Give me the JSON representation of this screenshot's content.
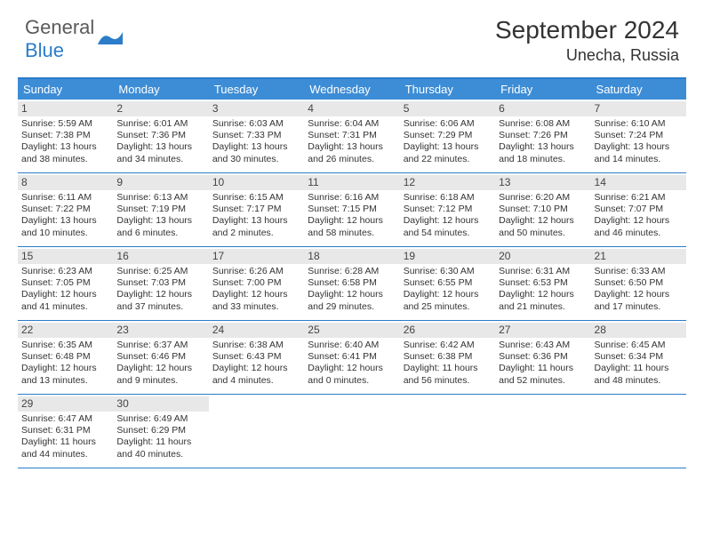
{
  "logo": {
    "text1": "General",
    "text2": "Blue"
  },
  "title": "September 2024",
  "location": "Unecha, Russia",
  "days_of_week": [
    "Sunday",
    "Monday",
    "Tuesday",
    "Wednesday",
    "Thursday",
    "Friday",
    "Saturday"
  ],
  "colors": {
    "header_bg": "#3d8dd6",
    "border": "#2b7cc9",
    "daynum_bg": "#e8e8e8",
    "text": "#333333",
    "logo_gray": "#5a5a5a",
    "logo_blue": "#2b7cc9"
  },
  "layout": {
    "weeks": 5,
    "cols": 7,
    "first_day_offset": 0,
    "total_days": 30
  },
  "days": [
    {
      "n": "1",
      "sr": "Sunrise: 5:59 AM",
      "ss": "Sunset: 7:38 PM",
      "dl1": "Daylight: 13 hours",
      "dl2": "and 38 minutes."
    },
    {
      "n": "2",
      "sr": "Sunrise: 6:01 AM",
      "ss": "Sunset: 7:36 PM",
      "dl1": "Daylight: 13 hours",
      "dl2": "and 34 minutes."
    },
    {
      "n": "3",
      "sr": "Sunrise: 6:03 AM",
      "ss": "Sunset: 7:33 PM",
      "dl1": "Daylight: 13 hours",
      "dl2": "and 30 minutes."
    },
    {
      "n": "4",
      "sr": "Sunrise: 6:04 AM",
      "ss": "Sunset: 7:31 PM",
      "dl1": "Daylight: 13 hours",
      "dl2": "and 26 minutes."
    },
    {
      "n": "5",
      "sr": "Sunrise: 6:06 AM",
      "ss": "Sunset: 7:29 PM",
      "dl1": "Daylight: 13 hours",
      "dl2": "and 22 minutes."
    },
    {
      "n": "6",
      "sr": "Sunrise: 6:08 AM",
      "ss": "Sunset: 7:26 PM",
      "dl1": "Daylight: 13 hours",
      "dl2": "and 18 minutes."
    },
    {
      "n": "7",
      "sr": "Sunrise: 6:10 AM",
      "ss": "Sunset: 7:24 PM",
      "dl1": "Daylight: 13 hours",
      "dl2": "and 14 minutes."
    },
    {
      "n": "8",
      "sr": "Sunrise: 6:11 AM",
      "ss": "Sunset: 7:22 PM",
      "dl1": "Daylight: 13 hours",
      "dl2": "and 10 minutes."
    },
    {
      "n": "9",
      "sr": "Sunrise: 6:13 AM",
      "ss": "Sunset: 7:19 PM",
      "dl1": "Daylight: 13 hours",
      "dl2": "and 6 minutes."
    },
    {
      "n": "10",
      "sr": "Sunrise: 6:15 AM",
      "ss": "Sunset: 7:17 PM",
      "dl1": "Daylight: 13 hours",
      "dl2": "and 2 minutes."
    },
    {
      "n": "11",
      "sr": "Sunrise: 6:16 AM",
      "ss": "Sunset: 7:15 PM",
      "dl1": "Daylight: 12 hours",
      "dl2": "and 58 minutes."
    },
    {
      "n": "12",
      "sr": "Sunrise: 6:18 AM",
      "ss": "Sunset: 7:12 PM",
      "dl1": "Daylight: 12 hours",
      "dl2": "and 54 minutes."
    },
    {
      "n": "13",
      "sr": "Sunrise: 6:20 AM",
      "ss": "Sunset: 7:10 PM",
      "dl1": "Daylight: 12 hours",
      "dl2": "and 50 minutes."
    },
    {
      "n": "14",
      "sr": "Sunrise: 6:21 AM",
      "ss": "Sunset: 7:07 PM",
      "dl1": "Daylight: 12 hours",
      "dl2": "and 46 minutes."
    },
    {
      "n": "15",
      "sr": "Sunrise: 6:23 AM",
      "ss": "Sunset: 7:05 PM",
      "dl1": "Daylight: 12 hours",
      "dl2": "and 41 minutes."
    },
    {
      "n": "16",
      "sr": "Sunrise: 6:25 AM",
      "ss": "Sunset: 7:03 PM",
      "dl1": "Daylight: 12 hours",
      "dl2": "and 37 minutes."
    },
    {
      "n": "17",
      "sr": "Sunrise: 6:26 AM",
      "ss": "Sunset: 7:00 PM",
      "dl1": "Daylight: 12 hours",
      "dl2": "and 33 minutes."
    },
    {
      "n": "18",
      "sr": "Sunrise: 6:28 AM",
      "ss": "Sunset: 6:58 PM",
      "dl1": "Daylight: 12 hours",
      "dl2": "and 29 minutes."
    },
    {
      "n": "19",
      "sr": "Sunrise: 6:30 AM",
      "ss": "Sunset: 6:55 PM",
      "dl1": "Daylight: 12 hours",
      "dl2": "and 25 minutes."
    },
    {
      "n": "20",
      "sr": "Sunrise: 6:31 AM",
      "ss": "Sunset: 6:53 PM",
      "dl1": "Daylight: 12 hours",
      "dl2": "and 21 minutes."
    },
    {
      "n": "21",
      "sr": "Sunrise: 6:33 AM",
      "ss": "Sunset: 6:50 PM",
      "dl1": "Daylight: 12 hours",
      "dl2": "and 17 minutes."
    },
    {
      "n": "22",
      "sr": "Sunrise: 6:35 AM",
      "ss": "Sunset: 6:48 PM",
      "dl1": "Daylight: 12 hours",
      "dl2": "and 13 minutes."
    },
    {
      "n": "23",
      "sr": "Sunrise: 6:37 AM",
      "ss": "Sunset: 6:46 PM",
      "dl1": "Daylight: 12 hours",
      "dl2": "and 9 minutes."
    },
    {
      "n": "24",
      "sr": "Sunrise: 6:38 AM",
      "ss": "Sunset: 6:43 PM",
      "dl1": "Daylight: 12 hours",
      "dl2": "and 4 minutes."
    },
    {
      "n": "25",
      "sr": "Sunrise: 6:40 AM",
      "ss": "Sunset: 6:41 PM",
      "dl1": "Daylight: 12 hours",
      "dl2": "and 0 minutes."
    },
    {
      "n": "26",
      "sr": "Sunrise: 6:42 AM",
      "ss": "Sunset: 6:38 PM",
      "dl1": "Daylight: 11 hours",
      "dl2": "and 56 minutes."
    },
    {
      "n": "27",
      "sr": "Sunrise: 6:43 AM",
      "ss": "Sunset: 6:36 PM",
      "dl1": "Daylight: 11 hours",
      "dl2": "and 52 minutes."
    },
    {
      "n": "28",
      "sr": "Sunrise: 6:45 AM",
      "ss": "Sunset: 6:34 PM",
      "dl1": "Daylight: 11 hours",
      "dl2": "and 48 minutes."
    },
    {
      "n": "29",
      "sr": "Sunrise: 6:47 AM",
      "ss": "Sunset: 6:31 PM",
      "dl1": "Daylight: 11 hours",
      "dl2": "and 44 minutes."
    },
    {
      "n": "30",
      "sr": "Sunrise: 6:49 AM",
      "ss": "Sunset: 6:29 PM",
      "dl1": "Daylight: 11 hours",
      "dl2": "and 40 minutes."
    }
  ]
}
